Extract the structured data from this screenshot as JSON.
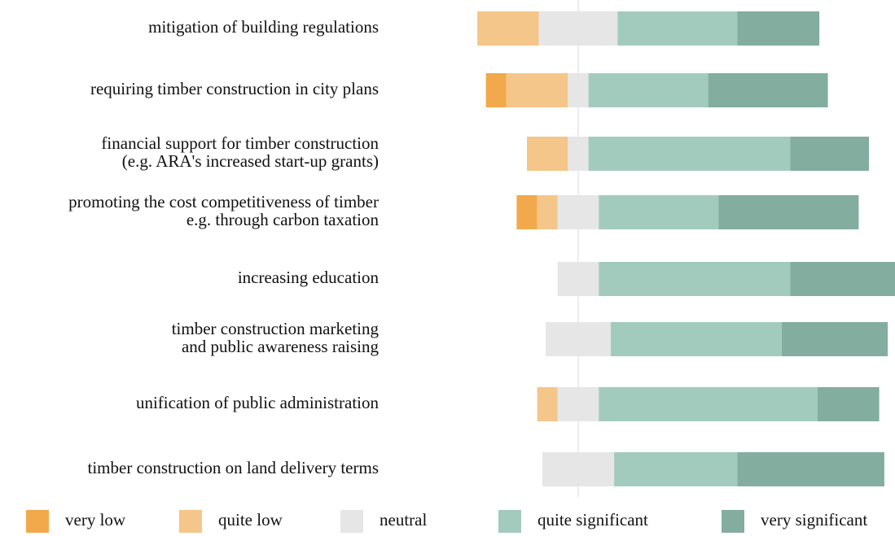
{
  "chart_data": {
    "type": "diverging_stacked_bar",
    "categories": [
      [
        "mitigation of building regulations"
      ],
      [
        "requiring timber construction in city plans"
      ],
      [
        "financial support for timber construction",
        "(e.g. ARA's increased start-up grants)"
      ],
      [
        "promoting the cost competitiveness of timber",
        "e.g. through carbon taxation"
      ],
      [
        "increasing education"
      ],
      [
        "timber construction marketing",
        "and public awareness raising"
      ],
      [
        "unification of public administration"
      ],
      [
        "timber construction on land delivery terms"
      ]
    ],
    "series": [
      {
        "name": "very low",
        "color": "#f2a94b",
        "values": [
          0,
          6,
          0,
          6,
          0,
          0,
          0,
          0
        ]
      },
      {
        "name": "quite low",
        "color": "#f5c68a",
        "values": [
          18,
          18,
          12,
          6,
          0,
          0,
          6,
          0
        ]
      },
      {
        "name": "neutral",
        "color": "#e6e6e6",
        "values": [
          23,
          6,
          6,
          12,
          12,
          19,
          12,
          21
        ]
      },
      {
        "name": "quite significant",
        "color": "#a3cbbd",
        "values": [
          35,
          35,
          59,
          35,
          56,
          50,
          64,
          36
        ]
      },
      {
        "name": "very significant",
        "color": "#82ad9f",
        "values": [
          24,
          35,
          23,
          41,
          32,
          31,
          18,
          43
        ]
      }
    ],
    "neutral_series": 2,
    "legend": "bottom"
  }
}
